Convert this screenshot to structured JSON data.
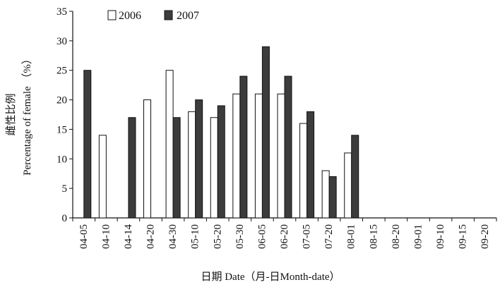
{
  "chart_data": {
    "type": "bar",
    "categories": [
      "04-05",
      "04-10",
      "04-14",
      "04-20",
      "04-30",
      "05-10",
      "05-20",
      "05-30",
      "06-05",
      "06-20",
      "07-05",
      "07-20",
      "08-01",
      "08-15",
      "08-20",
      "09-01",
      "09-10",
      "09-15",
      "09-20"
    ],
    "series": [
      {
        "name": "2006",
        "values": [
          null,
          14,
          null,
          20,
          25,
          18,
          17,
          21,
          21,
          21,
          16,
          8,
          11,
          null,
          null,
          null,
          null,
          null,
          null
        ]
      },
      {
        "name": "2007",
        "values": [
          25,
          null,
          17,
          null,
          17,
          20,
          19,
          24,
          29,
          24,
          18,
          7,
          14,
          null,
          null,
          null,
          null,
          null,
          null
        ]
      }
    ],
    "xlabel": "日期 Date（月-日Month-date）",
    "ylabel": [
      "雌性比例",
      "Percentage of female （%）"
    ],
    "ylim": [
      0,
      35
    ],
    "yticks": [
      0,
      5,
      10,
      15,
      20,
      25,
      30,
      35
    ],
    "legend": "top-left",
    "grid": false
  },
  "colors": {
    "series_2006": "#ffffff",
    "series_2007": "#3c3c3c",
    "axis": "#111111"
  }
}
